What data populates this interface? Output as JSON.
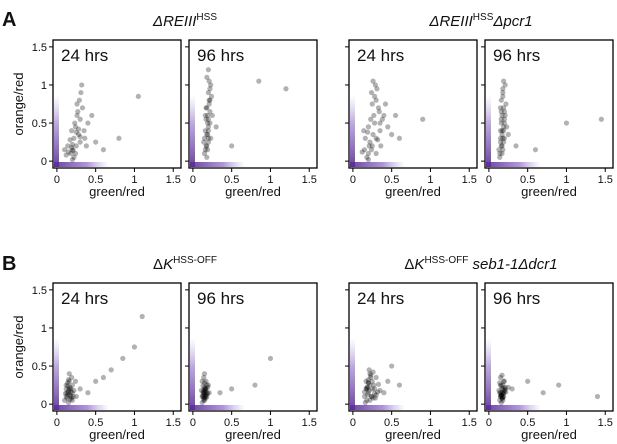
{
  "panel_labels": [
    "A",
    "B"
  ],
  "groups": [
    {
      "title": [
        {
          "text": "ΔREIII",
          "style": "italic"
        },
        {
          "text": "HSS",
          "style": "sup"
        }
      ]
    },
    {
      "title": [
        {
          "text": "ΔREIII",
          "style": "italic"
        },
        {
          "text": "HSS",
          "style": "sup"
        },
        {
          "text": "Δpcr1",
          "style": "italic"
        }
      ]
    },
    {
      "title": [
        {
          "text": "Δ",
          "style": "normal"
        },
        {
          "text": "K",
          "style": "italic"
        },
        {
          "text": "HSS-OFF",
          "style": "sup"
        }
      ]
    },
    {
      "title": [
        {
          "text": "Δ",
          "style": "normal"
        },
        {
          "text": "K",
          "style": "italic"
        },
        {
          "text": "HSS-OFF",
          "style": "sup"
        },
        {
          "text": " seb1-1Δdcr1",
          "style": "italic"
        }
      ]
    }
  ],
  "chart_data": [
    {
      "type": "scatter",
      "annotation": "24 hrs",
      "xlabel": "green/red",
      "ylabel": "orange/red",
      "ytick_labels": true,
      "point_color": "#000000",
      "xlim": [
        -0.05,
        1.6
      ],
      "ylim": [
        -0.09,
        1.59
      ],
      "xticks": [
        0,
        0.5,
        1,
        1.5
      ],
      "yticks": [
        0,
        0.5,
        1,
        1.5
      ],
      "x": [
        0.2,
        0.25,
        0.3,
        0.18,
        0.22,
        0.15,
        0.28,
        0.35,
        0.12,
        0.2,
        0.24,
        0.3,
        0.26,
        0.19,
        0.33,
        0.4,
        0.22,
        0.17,
        0.29,
        0.25,
        0.31,
        0.21,
        0.14,
        0.27,
        0.36,
        0.23,
        0.2,
        0.32,
        0.45,
        0.1,
        0.26,
        0.3,
        0.38,
        0.28,
        0.5,
        0.8,
        1.05,
        0.6,
        0.24,
        0.19
      ],
      "y": [
        0.15,
        0.2,
        0.25,
        0.1,
        0.3,
        0.12,
        0.35,
        0.4,
        0.08,
        0.22,
        0.45,
        0.55,
        0.6,
        0.18,
        0.7,
        0.5,
        0.05,
        0.28,
        0.8,
        0.38,
        0.9,
        0.14,
        0.2,
        0.65,
        0.3,
        0.5,
        0.02,
        1.0,
        0.6,
        0.15,
        0.75,
        0.32,
        0.2,
        0.42,
        0.25,
        0.3,
        0.85,
        0.15,
        0.1,
        0.4
      ]
    },
    {
      "type": "scatter",
      "annotation": "96 hrs",
      "xlabel": "green/red",
      "ytick_labels": false,
      "point_color": "#000000",
      "xlim": [
        -0.05,
        1.6
      ],
      "ylim": [
        -0.09,
        1.59
      ],
      "xticks": [
        0,
        0.5,
        1,
        1.5
      ],
      "yticks": [
        0,
        0.5,
        1,
        1.5
      ],
      "x": [
        0.15,
        0.18,
        0.2,
        0.16,
        0.22,
        0.19,
        0.17,
        0.21,
        0.14,
        0.2,
        0.23,
        0.18,
        0.16,
        0.2,
        0.22,
        0.19,
        0.17,
        0.21,
        0.24,
        0.18,
        0.2,
        0.15,
        0.22,
        0.19,
        0.25,
        0.17,
        0.2,
        0.21,
        0.18,
        0.23,
        0.16,
        0.19,
        0.22,
        0.2,
        0.3,
        0.5,
        1.2,
        0.85,
        0.18,
        0.2
      ],
      "y": [
        0.1,
        0.2,
        0.3,
        0.4,
        0.5,
        0.6,
        0.7,
        0.8,
        0.25,
        0.9,
        1.0,
        1.1,
        0.15,
        0.45,
        0.65,
        0.35,
        0.55,
        0.75,
        0.85,
        0.05,
        1.2,
        0.3,
        0.95,
        0.5,
        0.6,
        0.2,
        0.4,
        1.05,
        0.7,
        0.3,
        0.6,
        0.15,
        0.8,
        0.25,
        0.45,
        0.2,
        0.95,
        1.05,
        0.35,
        0.55
      ]
    },
    {
      "type": "scatter",
      "annotation": "24 hrs",
      "xlabel": "green/red",
      "ytick_labels": false,
      "point_color": "#000000",
      "xlim": [
        -0.05,
        1.6
      ],
      "ylim": [
        -0.09,
        1.59
      ],
      "xticks": [
        0,
        0.5,
        1,
        1.5
      ],
      "yticks": [
        0,
        0.5,
        1,
        1.5
      ],
      "x": [
        0.2,
        0.25,
        0.15,
        0.3,
        0.35,
        0.22,
        0.28,
        0.18,
        0.4,
        0.12,
        0.26,
        0.33,
        0.2,
        0.3,
        0.38,
        0.24,
        0.16,
        0.29,
        0.34,
        0.21,
        0.27,
        0.45,
        0.32,
        0.19,
        0.25,
        0.36,
        0.23,
        0.3,
        0.5,
        0.14,
        0.28,
        0.42,
        0.26,
        0.35,
        0.6,
        0.9,
        0.2,
        0.31,
        0.24,
        0.55
      ],
      "y": [
        0.1,
        0.2,
        0.15,
        0.3,
        0.4,
        0.25,
        0.5,
        0.05,
        0.6,
        0.12,
        0.35,
        0.7,
        0.45,
        0.8,
        0.55,
        0.9,
        0.3,
        1.0,
        0.65,
        0.2,
        0.6,
        0.45,
        0.28,
        0.38,
        0.75,
        0.2,
        0.55,
        0.1,
        0.35,
        0.4,
        0.85,
        0.75,
        1.05,
        0.5,
        0.3,
        0.55,
        0.02,
        0.95,
        0.15,
        0.6
      ]
    },
    {
      "type": "scatter",
      "annotation": "96 hrs",
      "xlabel": "green/red",
      "ytick_labels": false,
      "point_color": "#000000",
      "xlim": [
        -0.05,
        1.6
      ],
      "ylim": [
        -0.09,
        1.59
      ],
      "xticks": [
        0,
        0.5,
        1,
        1.5
      ],
      "yticks": [
        0,
        0.5,
        1,
        1.5
      ],
      "x": [
        0.14,
        0.16,
        0.18,
        0.15,
        0.2,
        0.17,
        0.13,
        0.19,
        0.16,
        0.18,
        0.21,
        0.15,
        0.17,
        0.19,
        0.14,
        0.2,
        0.16,
        0.22,
        0.18,
        0.15,
        0.17,
        0.19,
        0.21,
        0.16,
        0.18,
        0.2,
        0.15,
        0.17,
        0.23,
        0.19,
        0.16,
        0.18,
        0.25,
        0.2,
        0.35,
        0.6,
        1.0,
        1.45,
        0.17,
        0.19
      ],
      "y": [
        0.1,
        0.2,
        0.3,
        0.4,
        0.5,
        0.6,
        0.15,
        0.7,
        0.8,
        0.9,
        1.0,
        0.25,
        0.35,
        0.45,
        0.05,
        0.55,
        0.65,
        0.75,
        0.85,
        0.3,
        0.2,
        0.4,
        0.6,
        0.5,
        0.95,
        0.3,
        0.7,
        0.1,
        0.45,
        0.25,
        0.55,
        0.15,
        0.35,
        0.65,
        0.2,
        0.15,
        0.5,
        0.55,
        0.4,
        1.05
      ]
    },
    {
      "type": "scatter",
      "annotation": "24 hrs",
      "xlabel": "green/red",
      "ylabel": "orange/red",
      "ytick_labels": true,
      "point_color": "#000000",
      "xlim": [
        -0.05,
        1.6
      ],
      "ylim": [
        -0.09,
        1.59
      ],
      "xticks": [
        0,
        0.5,
        1,
        1.5
      ],
      "yticks": [
        0,
        0.5,
        1,
        1.5
      ],
      "x": [
        0.12,
        0.15,
        0.18,
        0.1,
        0.2,
        0.14,
        0.16,
        0.22,
        0.13,
        0.17,
        0.19,
        0.11,
        0.15,
        0.21,
        0.14,
        0.18,
        0.16,
        0.12,
        0.2,
        0.15,
        0.17,
        0.24,
        0.13,
        0.19,
        0.3,
        0.4,
        0.5,
        0.7,
        0.85,
        1.0,
        0.6,
        0.16,
        0.14,
        0.18,
        1.1,
        0.25,
        0.15,
        0.2,
        0.12,
        0.17
      ],
      "y": [
        0.1,
        0.15,
        0.2,
        0.05,
        0.25,
        0.12,
        0.3,
        0.18,
        0.08,
        0.22,
        0.35,
        0.14,
        0.02,
        0.1,
        0.28,
        0.16,
        0.2,
        0.25,
        0.05,
        0.18,
        0.12,
        0.3,
        0.15,
        0.08,
        0.2,
        0.15,
        0.3,
        0.45,
        0.6,
        0.75,
        0.35,
        0.4,
        0.24,
        0.1,
        1.15,
        0.1,
        0.32,
        0.15,
        0.2,
        0.06
      ]
    },
    {
      "type": "scatter",
      "annotation": "96 hrs",
      "xlabel": "green/red",
      "ytick_labels": false,
      "point_color": "#000000",
      "xlim": [
        -0.05,
        1.6
      ],
      "ylim": [
        -0.09,
        1.59
      ],
      "xticks": [
        0,
        0.5,
        1,
        1.5
      ],
      "yticks": [
        0,
        0.5,
        1,
        1.5
      ],
      "x": [
        0.12,
        0.14,
        0.16,
        0.15,
        0.18,
        0.13,
        0.17,
        0.11,
        0.15,
        0.19,
        0.14,
        0.16,
        0.12,
        0.18,
        0.15,
        0.13,
        0.17,
        0.2,
        0.14,
        0.16,
        0.15,
        0.12,
        0.18,
        0.14,
        0.16,
        0.21,
        0.13,
        0.17,
        0.15,
        0.5,
        0.8,
        1.0,
        0.35,
        0.15,
        0.14,
        0.16,
        0.19,
        0.13,
        0.17,
        0.15
      ],
      "y": [
        0.1,
        0.15,
        0.2,
        0.05,
        0.25,
        0.12,
        0.3,
        0.18,
        0.08,
        0.22,
        0.35,
        0.14,
        0.02,
        0.1,
        0.28,
        0.16,
        0.2,
        0.25,
        0.05,
        0.18,
        0.12,
        0.3,
        0.15,
        0.08,
        0.2,
        0.15,
        0.1,
        0.12,
        0.4,
        0.2,
        0.25,
        0.6,
        0.15,
        0.22,
        0.18,
        0.1,
        0.14,
        0.24,
        0.08,
        0.16
      ]
    },
    {
      "type": "scatter",
      "annotation": "24 hrs",
      "xlabel": "green/red",
      "ytick_labels": false,
      "point_color": "#000000",
      "xlim": [
        -0.05,
        1.6
      ],
      "ylim": [
        -0.09,
        1.59
      ],
      "xticks": [
        0,
        0.5,
        1,
        1.5
      ],
      "yticks": [
        0,
        0.5,
        1,
        1.5
      ],
      "x": [
        0.15,
        0.2,
        0.25,
        0.18,
        0.22,
        0.3,
        0.17,
        0.21,
        0.26,
        0.19,
        0.23,
        0.28,
        0.16,
        0.24,
        0.2,
        0.32,
        0.18,
        0.27,
        0.22,
        0.35,
        0.19,
        0.25,
        0.21,
        0.29,
        0.17,
        0.23,
        0.4,
        0.45,
        0.5,
        0.6,
        0.2,
        0.26,
        0.22,
        0.3,
        0.18,
        0.24,
        0.2,
        0.28,
        0.15,
        0.33
      ],
      "y": [
        0.1,
        0.15,
        0.2,
        0.05,
        0.25,
        0.12,
        0.3,
        0.18,
        0.08,
        0.22,
        0.35,
        0.14,
        0.02,
        0.1,
        0.28,
        0.16,
        0.2,
        0.25,
        0.4,
        0.18,
        0.12,
        0.3,
        0.45,
        0.08,
        0.2,
        0.38,
        0.15,
        0.3,
        0.5,
        0.25,
        0.32,
        0.42,
        0.05,
        0.35,
        0.22,
        0.1,
        0.28,
        0.2,
        0.16,
        0.26
      ]
    },
    {
      "type": "scatter",
      "annotation": "96 hrs",
      "xlabel": "green/red",
      "ytick_labels": false,
      "point_color": "#000000",
      "xlim": [
        -0.05,
        1.6
      ],
      "ylim": [
        -0.09,
        1.59
      ],
      "xticks": [
        0,
        0.5,
        1,
        1.5
      ],
      "yticks": [
        0,
        0.5,
        1,
        1.5
      ],
      "x": [
        0.15,
        0.17,
        0.19,
        0.14,
        0.18,
        0.16,
        0.2,
        0.13,
        0.17,
        0.21,
        0.15,
        0.18,
        0.16,
        0.19,
        0.14,
        0.22,
        0.17,
        0.15,
        0.18,
        0.2,
        0.16,
        0.19,
        0.14,
        0.17,
        0.21,
        0.15,
        0.18,
        0.16,
        0.3,
        0.5,
        0.7,
        0.9,
        1.4,
        0.25,
        0.17,
        0.15,
        0.19,
        0.16,
        0.18,
        0.2
      ],
      "y": [
        0.1,
        0.15,
        0.2,
        0.05,
        0.25,
        0.12,
        0.3,
        0.18,
        0.08,
        0.22,
        0.35,
        0.14,
        0.02,
        0.1,
        0.28,
        0.16,
        0.2,
        0.25,
        0.05,
        0.18,
        0.12,
        0.3,
        0.15,
        0.08,
        0.2,
        0.15,
        0.1,
        0.12,
        0.2,
        0.3,
        0.15,
        0.25,
        0.1,
        0.22,
        0.38,
        0.1,
        0.14,
        0.24,
        0.08,
        0.16
      ]
    }
  ]
}
